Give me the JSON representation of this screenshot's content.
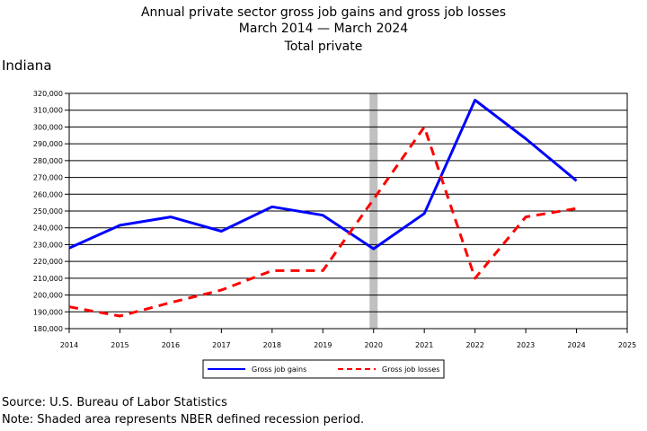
{
  "header": {
    "title_line1": "Annual private sector gross job gains and gross job losses",
    "title_line2": "March 2014 — March 2024",
    "title_line3": "Total private",
    "region": "Indiana"
  },
  "footer": {
    "source": "Source: U.S. Bureau of Labor Statistics",
    "note": "Note: Shaded area represents NBER defined recession period."
  },
  "chart_data": {
    "type": "line",
    "title": "Annual private sector gross job gains and gross job losses",
    "xlabel": "",
    "ylabel": "",
    "xlim": [
      2014,
      2025
    ],
    "ylim": [
      180000,
      320000
    ],
    "x_ticks": [
      2014,
      2015,
      2016,
      2017,
      2018,
      2019,
      2020,
      2021,
      2022,
      2023,
      2024,
      2025
    ],
    "y_ticks": [
      180000,
      190000,
      200000,
      210000,
      220000,
      230000,
      240000,
      250000,
      260000,
      270000,
      280000,
      290000,
      300000,
      310000,
      320000
    ],
    "grid": "horizontal",
    "legend_position": "bottom",
    "recession_shading": [
      2020,
      2020
    ],
    "series": [
      {
        "name": "Gross job gains",
        "color": "#0000ff",
        "dash": "solid",
        "x": [
          2014,
          2015,
          2016,
          2017,
          2018,
          2019,
          2020,
          2021,
          2022,
          2023,
          2024
        ],
        "values": [
          228000,
          241500,
          246500,
          238000,
          252500,
          247500,
          227500,
          248500,
          316000,
          293000,
          268000
        ]
      },
      {
        "name": "Gross job losses",
        "color": "#ff0000",
        "dash": "dashed",
        "x": [
          2014,
          2015,
          2016,
          2017,
          2018,
          2019,
          2020,
          2021,
          2022,
          2023,
          2024
        ],
        "values": [
          193000,
          187500,
          195500,
          203000,
          214500,
          214500,
          257000,
          300000,
          210000,
          246500,
          251500
        ]
      }
    ]
  }
}
